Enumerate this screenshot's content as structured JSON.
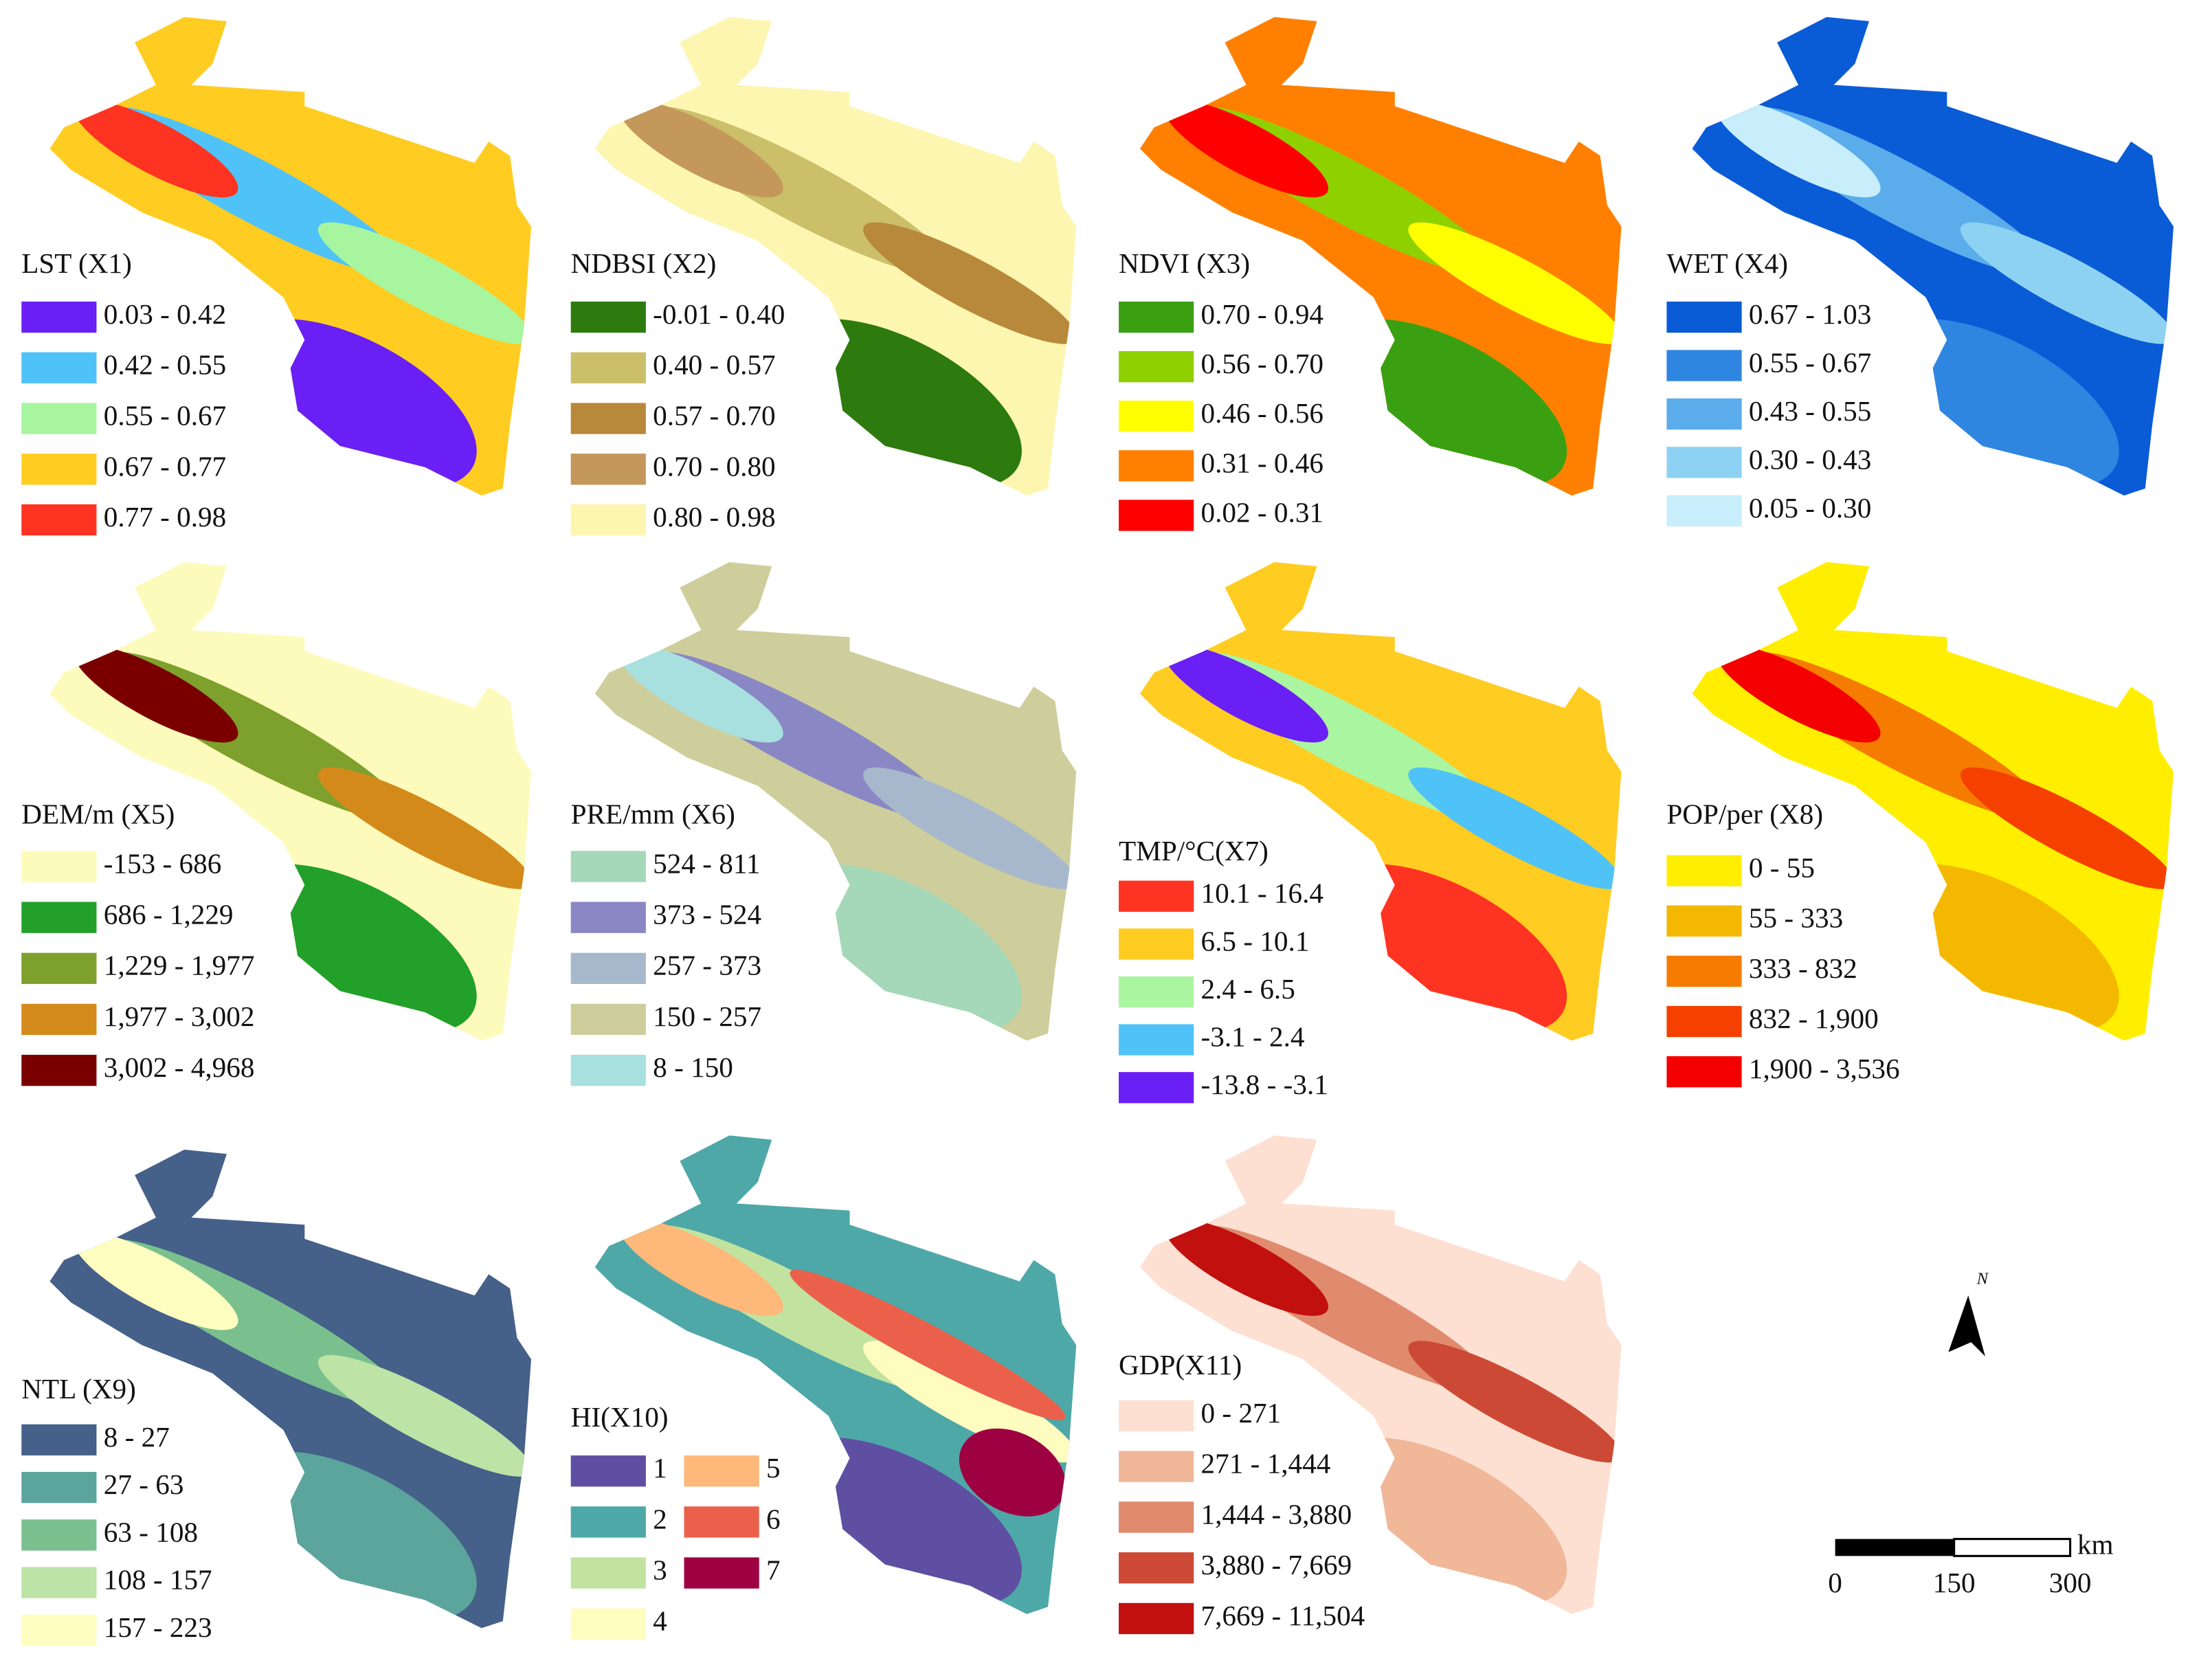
{
  "panels": [
    {
      "title": "LST (X1)",
      "legend": [
        {
          "label": "0.03 - 0.42",
          "color": "#6a1ff5"
        },
        {
          "label": "0.42 - 0.55",
          "color": "#4fc3f7"
        },
        {
          "label": "0.55 - 0.67",
          "color": "#a8f5a0"
        },
        {
          "label": "0.67 - 0.77",
          "color": "#ffcc22"
        },
        {
          "label": "0.77 - 0.98",
          "color": "#ff3322"
        }
      ]
    },
    {
      "title": "NDBSI (X2)",
      "legend": [
        {
          "label": "-0.01 - 0.40",
          "color": "#2d7a0e"
        },
        {
          "label": "0.40 - 0.57",
          "color": "#cbbf6a"
        },
        {
          "label": "0.57 - 0.70",
          "color": "#b8893a"
        },
        {
          "label": "0.70 - 0.80",
          "color": "#c4975a"
        },
        {
          "label": "0.80 - 0.98",
          "color": "#fdf6b0"
        }
      ]
    },
    {
      "title": "NDVI (X3)",
      "legend": [
        {
          "label": "0.70 - 0.94",
          "color": "#3aa012"
        },
        {
          "label": "0.56 - 0.70",
          "color": "#8fd100"
        },
        {
          "label": "0.46 - 0.56",
          "color": "#ffff00"
        },
        {
          "label": "0.31 - 0.46",
          "color": "#ff8000"
        },
        {
          "label": "0.02 - 0.31",
          "color": "#ff0000"
        }
      ]
    },
    {
      "title": "WET (X4)",
      "legend": [
        {
          "label": "0.67 - 1.03",
          "color": "#0a5bd6"
        },
        {
          "label": "0.55 - 0.67",
          "color": "#2f86e0"
        },
        {
          "label": "0.43 - 0.55",
          "color": "#5aaceb"
        },
        {
          "label": "0.30 - 0.43",
          "color": "#8dd2f2"
        },
        {
          "label": "0.05 - 0.30",
          "color": "#c7eefa"
        }
      ]
    },
    {
      "title": "DEM/m (X5)",
      "legend": [
        {
          "label": "-153 - 686",
          "color": "#fdfbbb"
        },
        {
          "label": "686 - 1,229",
          "color": "#22a02a"
        },
        {
          "label": "1,229 - 1,977",
          "color": "#7ea02c"
        },
        {
          "label": "1,977 - 3,002",
          "color": "#d48a1a"
        },
        {
          "label": "3,002 - 4,968",
          "color": "#7a0000"
        }
      ]
    },
    {
      "title": "PRE/mm (X6)",
      "legend": [
        {
          "label": "524 - 811",
          "color": "#a4d8b8"
        },
        {
          "label": "373 - 524",
          "color": "#8a88c4"
        },
        {
          "label": "257 - 373",
          "color": "#a8b8cc"
        },
        {
          "label": "150 - 257",
          "color": "#cece9c"
        },
        {
          "label": "8 - 150",
          "color": "#a8e0e0"
        }
      ]
    },
    {
      "title": "TMP/°C(X7)",
      "legend": [
        {
          "label": "10.1 - 16.4",
          "color": "#ff3322"
        },
        {
          "label": "6.5 - 10.1",
          "color": "#ffcc22"
        },
        {
          "label": "2.4 - 6.5",
          "color": "#aaf5a0"
        },
        {
          "label": "-3.1 - 2.4",
          "color": "#4fc3f7"
        },
        {
          "label": "-13.8 - -3.1",
          "color": "#6a1ff5"
        }
      ]
    },
    {
      "title": "POP/per (X8)",
      "legend": [
        {
          "label": "0 - 55",
          "color": "#ffee00"
        },
        {
          "label": "55 - 333",
          "color": "#f5b800"
        },
        {
          "label": "333 - 832",
          "color": "#f57c00"
        },
        {
          "label": "832 - 1,900",
          "color": "#f54000"
        },
        {
          "label": "1,900 - 3,536",
          "color": "#f50000"
        }
      ]
    },
    {
      "title": "NTL (X9)",
      "legend": [
        {
          "label": "8 - 27",
          "color": "#456089"
        },
        {
          "label": "27 - 63",
          "color": "#5ba59c"
        },
        {
          "label": "63 - 108",
          "color": "#7ac08e"
        },
        {
          "label": "108 - 157",
          "color": "#bde3a6"
        },
        {
          "label": "157 - 223",
          "color": "#fefec0"
        }
      ]
    },
    {
      "title": "HI(X10)",
      "legend": [
        {
          "label": "1",
          "color": "#5e4fa2"
        },
        {
          "label": "2",
          "color": "#4fa8a8"
        },
        {
          "label": "3",
          "color": "#c2e3a0"
        },
        {
          "label": "4",
          "color": "#fffcc0"
        },
        {
          "label": "5",
          "color": "#fdb87a"
        },
        {
          "label": "6",
          "color": "#eb604a"
        },
        {
          "label": "7",
          "color": "#9e0142"
        }
      ]
    },
    {
      "title": "GDP(X11)",
      "legend": [
        {
          "label": "0 - 271",
          "color": "#fde0d2"
        },
        {
          "label": "271 - 1,444",
          "color": "#f1b799"
        },
        {
          "label": "1,444 - 3,880",
          "color": "#e08a6e"
        },
        {
          "label": "3,880 - 7,669",
          "color": "#cc4a35"
        },
        {
          "label": "7,669 - 11,504",
          "color": "#c2100f"
        }
      ]
    }
  ],
  "north_arrow": "N",
  "scale_bar": {
    "unit": "km",
    "labels": [
      "0",
      "150",
      "300"
    ]
  }
}
